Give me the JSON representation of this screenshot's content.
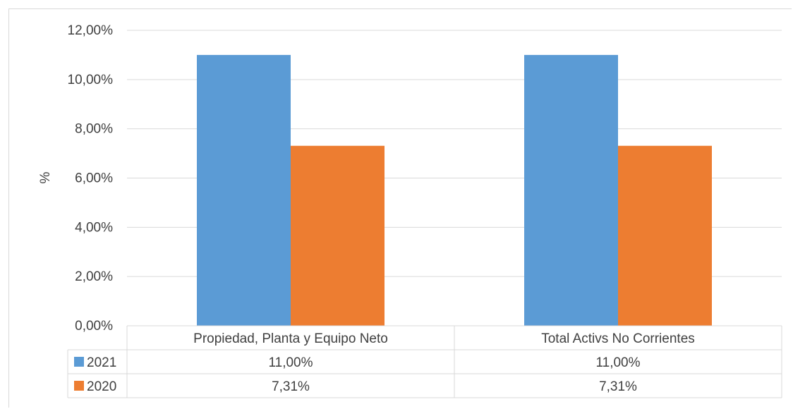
{
  "chart_data": {
    "type": "bar",
    "categories": [
      "Propiedad, Planta y Equipo Neto",
      "Total Activs No Corrientes"
    ],
    "series": [
      {
        "name": "2021",
        "values": [
          11.0,
          11.0
        ],
        "labels": [
          "11,00%",
          "11,00%"
        ],
        "color": "#5b9bd5"
      },
      {
        "name": "2020",
        "values": [
          7.31,
          7.31
        ],
        "labels": [
          "7,31%",
          "7,31%"
        ],
        "color": "#ed7d31"
      }
    ],
    "ylabel": "%",
    "ylim": [
      0,
      12
    ],
    "yticks": [
      0,
      2,
      4,
      6,
      8,
      10,
      12
    ],
    "ytick_labels": [
      "0,00%",
      "2,00%",
      "4,00%",
      "6,00%",
      "8,00%",
      "10,00%",
      "12,00%"
    ],
    "grid": true,
    "legend": "data-table-left"
  }
}
